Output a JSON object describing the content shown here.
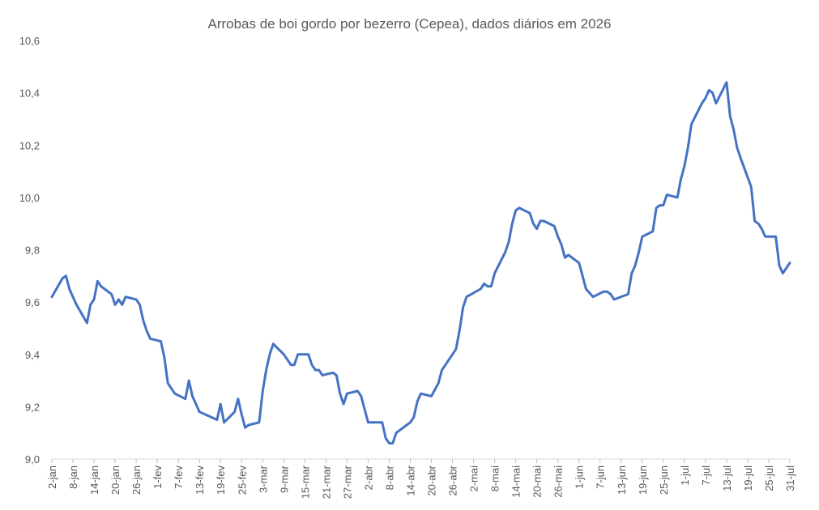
{
  "chart_data": {
    "type": "line",
    "title": "Arrobas de boi gordo por bezerro (Cepea), dados diários em 2026",
    "xlabel": "",
    "ylabel": "",
    "ylim": [
      9.0,
      10.6
    ],
    "yticks": [
      "9,0",
      "9,2",
      "9,4",
      "9,6",
      "9,8",
      "10,0",
      "10,2",
      "10,4",
      "10,6"
    ],
    "yticks_values": [
      9.0,
      9.2,
      9.4,
      9.6,
      9.8,
      10.0,
      10.2,
      10.4,
      10.6
    ],
    "grid": false,
    "legend": "none",
    "line_color": "#4472C4",
    "x_range": [
      "2026-01-02",
      "2026-07-31"
    ],
    "xticks": [
      "2-jan",
      "8-jan",
      "14-jan",
      "20-jan",
      "26-jan",
      "1-fev",
      "7-fev",
      "13-fev",
      "19-fev",
      "25-fev",
      "3-mar",
      "9-mar",
      "15-mar",
      "21-mar",
      "27-mar",
      "2-abr",
      "8-abr",
      "14-abr",
      "20-abr",
      "26-abr",
      "2-mai",
      "8-mai",
      "14-mai",
      "20-mai",
      "26-mai",
      "1-jun",
      "7-jun",
      "13-jun",
      "19-jun",
      "25-jun",
      "1-jul",
      "7-jul",
      "13-jul",
      "19-jul",
      "25-jul",
      "31-jul"
    ],
    "xticks_dates": [
      "2026-01-02",
      "2026-01-08",
      "2026-01-14",
      "2026-01-20",
      "2026-01-26",
      "2026-02-01",
      "2026-02-07",
      "2026-02-13",
      "2026-02-19",
      "2026-02-25",
      "2026-03-03",
      "2026-03-09",
      "2026-03-15",
      "2026-03-21",
      "2026-03-27",
      "2026-04-02",
      "2026-04-08",
      "2026-04-14",
      "2026-04-20",
      "2026-04-26",
      "2026-05-02",
      "2026-05-08",
      "2026-05-14",
      "2026-05-20",
      "2026-05-26",
      "2026-06-01",
      "2026-06-07",
      "2026-06-13",
      "2026-06-19",
      "2026-06-25",
      "2026-07-01",
      "2026-07-07",
      "2026-07-13",
      "2026-07-19",
      "2026-07-25",
      "2026-07-31"
    ],
    "series": [
      {
        "points": [
          [
            "2026-01-02",
            9.62
          ],
          [
            "2026-01-05",
            9.69
          ],
          [
            "2026-01-06",
            9.7
          ],
          [
            "2026-01-07",
            9.65
          ],
          [
            "2026-01-08",
            9.62
          ],
          [
            "2026-01-09",
            9.59
          ],
          [
            "2026-01-12",
            9.52
          ],
          [
            "2026-01-13",
            9.59
          ],
          [
            "2026-01-14",
            9.61
          ],
          [
            "2026-01-15",
            9.68
          ],
          [
            "2026-01-16",
            9.66
          ],
          [
            "2026-01-19",
            9.63
          ],
          [
            "2026-01-20",
            9.59
          ],
          [
            "2026-01-21",
            9.61
          ],
          [
            "2026-01-22",
            9.59
          ],
          [
            "2026-01-23",
            9.62
          ],
          [
            "2026-01-26",
            9.61
          ],
          [
            "2026-01-27",
            9.59
          ],
          [
            "2026-01-28",
            9.53
          ],
          [
            "2026-01-29",
            9.49
          ],
          [
            "2026-01-30",
            9.46
          ],
          [
            "2026-02-02",
            9.45
          ],
          [
            "2026-02-03",
            9.39
          ],
          [
            "2026-02-04",
            9.29
          ],
          [
            "2026-02-05",
            9.27
          ],
          [
            "2026-02-06",
            9.25
          ],
          [
            "2026-02-09",
            9.23
          ],
          [
            "2026-02-10",
            9.3
          ],
          [
            "2026-02-11",
            9.24
          ],
          [
            "2026-02-12",
            9.21
          ],
          [
            "2026-02-13",
            9.18
          ],
          [
            "2026-02-18",
            9.15
          ],
          [
            "2026-02-19",
            9.21
          ],
          [
            "2026-02-20",
            9.14
          ],
          [
            "2026-02-23",
            9.18
          ],
          [
            "2026-02-24",
            9.23
          ],
          [
            "2026-02-25",
            9.17
          ],
          [
            "2026-02-26",
            9.12
          ],
          [
            "2026-02-27",
            9.13
          ],
          [
            "2026-03-02",
            9.14
          ],
          [
            "2026-03-03",
            9.26
          ],
          [
            "2026-03-04",
            9.34
          ],
          [
            "2026-03-05",
            9.4
          ],
          [
            "2026-03-06",
            9.44
          ],
          [
            "2026-03-09",
            9.4
          ],
          [
            "2026-03-10",
            9.38
          ],
          [
            "2026-03-11",
            9.36
          ],
          [
            "2026-03-12",
            9.36
          ],
          [
            "2026-03-13",
            9.4
          ],
          [
            "2026-03-16",
            9.4
          ],
          [
            "2026-03-17",
            9.36
          ],
          [
            "2026-03-18",
            9.34
          ],
          [
            "2026-03-19",
            9.34
          ],
          [
            "2026-03-20",
            9.32
          ],
          [
            "2026-03-23",
            9.33
          ],
          [
            "2026-03-24",
            9.32
          ],
          [
            "2026-03-25",
            9.25
          ],
          [
            "2026-03-26",
            9.21
          ],
          [
            "2026-03-27",
            9.25
          ],
          [
            "2026-03-30",
            9.26
          ],
          [
            "2026-03-31",
            9.24
          ],
          [
            "2026-04-01",
            9.19
          ],
          [
            "2026-04-02",
            9.14
          ],
          [
            "2026-04-06",
            9.14
          ],
          [
            "2026-04-07",
            9.08
          ],
          [
            "2026-04-08",
            9.06
          ],
          [
            "2026-04-09",
            9.06
          ],
          [
            "2026-04-10",
            9.1
          ],
          [
            "2026-04-13",
            9.13
          ],
          [
            "2026-04-14",
            9.14
          ],
          [
            "2026-04-15",
            9.16
          ],
          [
            "2026-04-16",
            9.22
          ],
          [
            "2026-04-17",
            9.25
          ],
          [
            "2026-04-20",
            9.24
          ],
          [
            "2026-04-22",
            9.29
          ],
          [
            "2026-04-23",
            9.34
          ],
          [
            "2026-04-24",
            9.36
          ],
          [
            "2026-04-27",
            9.42
          ],
          [
            "2026-04-28",
            9.49
          ],
          [
            "2026-04-29",
            9.58
          ],
          [
            "2026-04-30",
            9.62
          ],
          [
            "2026-05-04",
            9.65
          ],
          [
            "2026-05-05",
            9.67
          ],
          [
            "2026-05-06",
            9.66
          ],
          [
            "2026-05-07",
            9.66
          ],
          [
            "2026-05-08",
            9.71
          ],
          [
            "2026-05-11",
            9.79
          ],
          [
            "2026-05-12",
            9.83
          ],
          [
            "2026-05-13",
            9.9
          ],
          [
            "2026-05-14",
            9.95
          ],
          [
            "2026-05-15",
            9.96
          ],
          [
            "2026-05-18",
            9.94
          ],
          [
            "2026-05-19",
            9.9
          ],
          [
            "2026-05-20",
            9.88
          ],
          [
            "2026-05-21",
            9.91
          ],
          [
            "2026-05-22",
            9.91
          ],
          [
            "2026-05-25",
            9.89
          ],
          [
            "2026-05-26",
            9.85
          ],
          [
            "2026-05-27",
            9.82
          ],
          [
            "2026-05-28",
            9.77
          ],
          [
            "2026-05-29",
            9.78
          ],
          [
            "2026-06-01",
            9.75
          ],
          [
            "2026-06-02",
            9.7
          ],
          [
            "2026-06-03",
            9.65
          ],
          [
            "2026-06-05",
            9.62
          ],
          [
            "2026-06-08",
            9.64
          ],
          [
            "2026-06-09",
            9.64
          ],
          [
            "2026-06-10",
            9.63
          ],
          [
            "2026-06-11",
            9.61
          ],
          [
            "2026-06-15",
            9.63
          ],
          [
            "2026-06-16",
            9.71
          ],
          [
            "2026-06-17",
            9.74
          ],
          [
            "2026-06-18",
            9.79
          ],
          [
            "2026-06-19",
            9.85
          ],
          [
            "2026-06-22",
            9.87
          ],
          [
            "2026-06-23",
            9.96
          ],
          [
            "2026-06-24",
            9.97
          ],
          [
            "2026-06-25",
            9.97
          ],
          [
            "2026-06-26",
            10.01
          ],
          [
            "2026-06-29",
            10.0
          ],
          [
            "2026-06-30",
            10.07
          ],
          [
            "2026-07-01",
            10.12
          ],
          [
            "2026-07-02",
            10.19
          ],
          [
            "2026-07-03",
            10.28
          ],
          [
            "2026-07-06",
            10.36
          ],
          [
            "2026-07-07",
            10.38
          ],
          [
            "2026-07-08",
            10.41
          ],
          [
            "2026-07-09",
            10.4
          ],
          [
            "2026-07-10",
            10.36
          ],
          [
            "2026-07-13",
            10.44
          ],
          [
            "2026-07-14",
            10.31
          ],
          [
            "2026-07-15",
            10.26
          ],
          [
            "2026-07-16",
            10.19
          ],
          [
            "2026-07-17",
            10.15
          ],
          [
            "2026-07-20",
            10.04
          ],
          [
            "2026-07-21",
            9.91
          ],
          [
            "2026-07-22",
            9.9
          ],
          [
            "2026-07-23",
            9.88
          ],
          [
            "2026-07-24",
            9.85
          ],
          [
            "2026-07-27",
            9.85
          ],
          [
            "2026-07-28",
            9.74
          ],
          [
            "2026-07-29",
            9.71
          ],
          [
            "2026-07-30",
            9.73
          ],
          [
            "2026-07-31",
            9.75
          ]
        ]
      }
    ]
  }
}
